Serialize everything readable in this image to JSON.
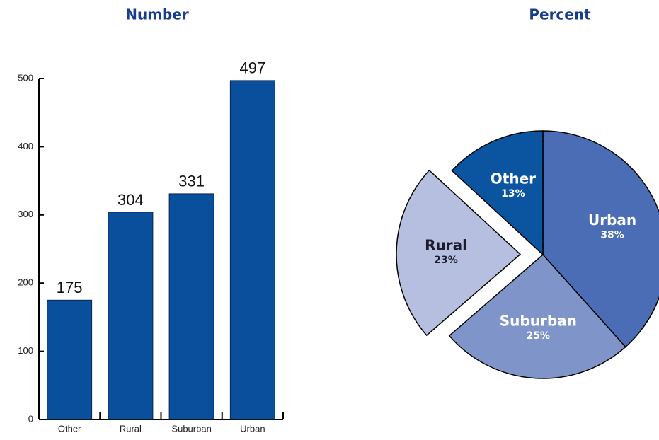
{
  "chart_data": [
    {
      "type": "bar",
      "title": "Number",
      "categories": [
        "Other",
        "Rural",
        "Suburban",
        "Urban"
      ],
      "values": [
        175,
        304,
        331,
        497
      ],
      "color": "#0a4f9c",
      "ylim": [
        0,
        500
      ],
      "yticks": [
        0,
        100,
        200,
        300,
        400,
        500
      ]
    },
    {
      "type": "pie",
      "title": "Percent",
      "categories": [
        "Urban",
        "Suburban",
        "Rural",
        "Other"
      ],
      "values": [
        38,
        25,
        23,
        13
      ],
      "value_labels": [
        "38%",
        "25%",
        "23%",
        "13%"
      ],
      "colors": [
        "#4a6db5",
        "#7f94c8",
        "#b6bfdf",
        "#0a54a0"
      ],
      "exploded": "Rural"
    }
  ]
}
